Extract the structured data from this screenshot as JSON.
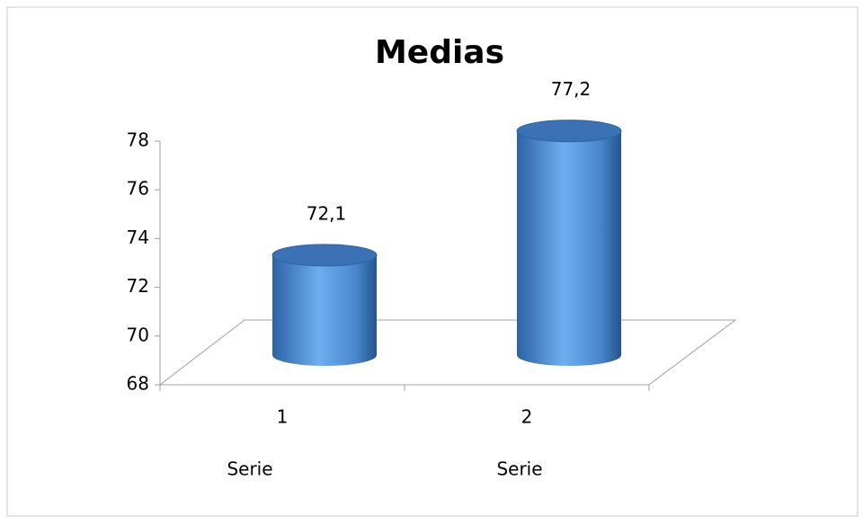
{
  "chart_data": {
    "type": "bar3d",
    "title": "Medias",
    "categories": [
      "1",
      "2"
    ],
    "category_labels": [
      "Serie",
      "Serie"
    ],
    "values": [
      72.1,
      77.2
    ],
    "value_labels": [
      "72,1",
      "77,2"
    ],
    "color": "#4a8ad4",
    "ylim": [
      68,
      78
    ],
    "yticks": [
      68,
      70,
      72,
      74,
      76,
      78
    ],
    "grid": false
  }
}
